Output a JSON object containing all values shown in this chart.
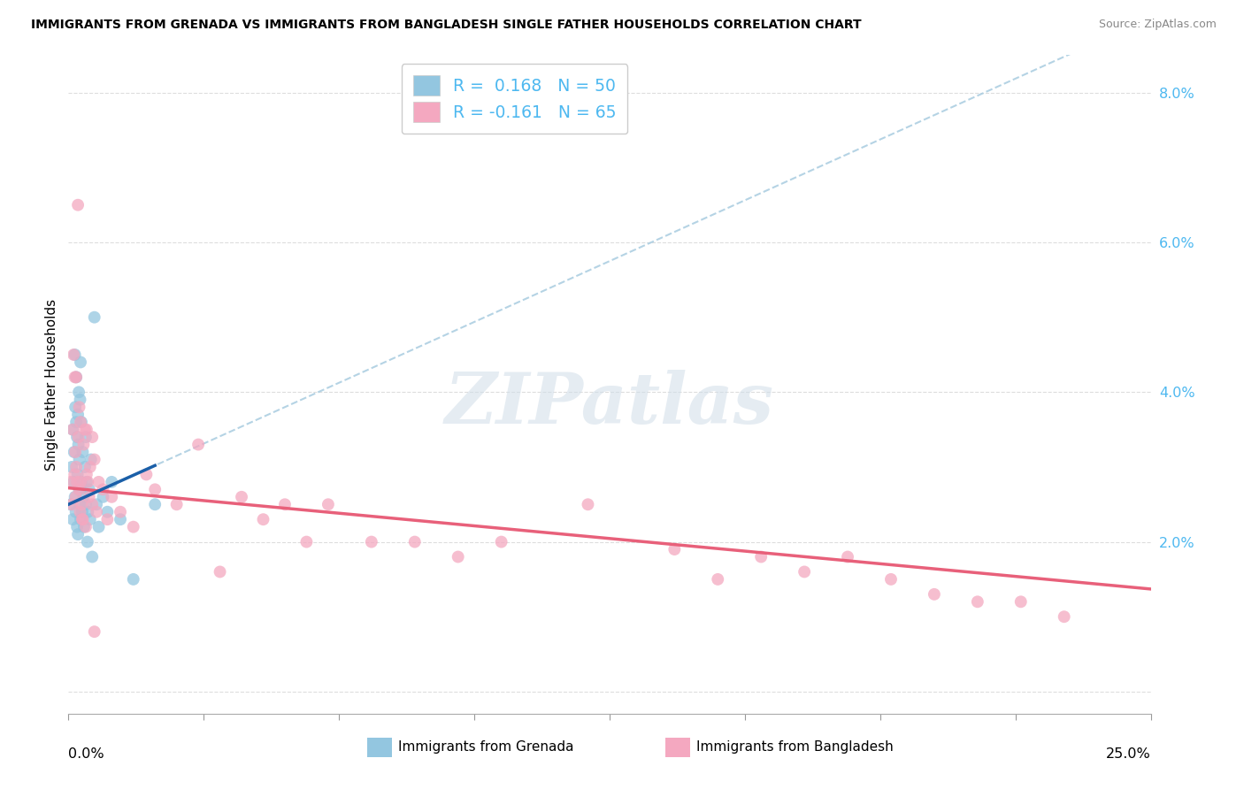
{
  "title": "IMMIGRANTS FROM GRENADA VS IMMIGRANTS FROM BANGLADESH SINGLE FATHER HOUSEHOLDS CORRELATION CHART",
  "source": "Source: ZipAtlas.com",
  "ylabel": "Single Father Households",
  "xlim": [
    0.0,
    25.0
  ],
  "ylim": [
    -0.3,
    8.5
  ],
  "ytick_vals": [
    0.0,
    2.0,
    4.0,
    6.0,
    8.0
  ],
  "ytick_labels": [
    "",
    "2.0%",
    "4.0%",
    "6.0%",
    "8.0%"
  ],
  "xtick_vals": [
    0,
    3.125,
    6.25,
    9.375,
    12.5,
    15.625,
    18.75,
    21.875,
    25.0
  ],
  "color_blue": "#93c6e0",
  "color_pink": "#f4a8c0",
  "color_blue_line": "#1a5fa8",
  "color_pink_line": "#e8607a",
  "color_dashed": "#a8cce0",
  "legend1_text": "R =  0.168   N = 50",
  "legend2_text": "R = -0.161   N = 65",
  "legend_label1": "Immigrants from Grenada",
  "legend_label2": "Immigrants from Bangladesh",
  "watermark": "ZIPatlas",
  "grenada_x": [
    0.05,
    0.08,
    0.1,
    0.1,
    0.12,
    0.13,
    0.15,
    0.15,
    0.16,
    0.17,
    0.18,
    0.18,
    0.2,
    0.2,
    0.21,
    0.22,
    0.22,
    0.23,
    0.24,
    0.25,
    0.25,
    0.26,
    0.27,
    0.28,
    0.28,
    0.3,
    0.3,
    0.32,
    0.33,
    0.35,
    0.36,
    0.38,
    0.4,
    0.4,
    0.42,
    0.44,
    0.45,
    0.48,
    0.5,
    0.52,
    0.55,
    0.6,
    0.65,
    0.7,
    0.8,
    0.9,
    1.0,
    1.2,
    1.5,
    2.0
  ],
  "grenada_y": [
    2.5,
    3.0,
    2.3,
    3.5,
    2.8,
    3.2,
    2.6,
    4.5,
    3.8,
    2.4,
    3.6,
    4.2,
    2.2,
    3.4,
    2.9,
    3.7,
    2.1,
    3.3,
    4.0,
    2.7,
    3.1,
    2.5,
    3.9,
    2.3,
    4.4,
    2.8,
    3.6,
    2.4,
    3.2,
    2.6,
    2.2,
    3.0,
    2.5,
    3.4,
    2.8,
    2.0,
    2.4,
    2.7,
    2.3,
    3.1,
    1.8,
    5.0,
    2.5,
    2.2,
    2.6,
    2.4,
    2.8,
    2.3,
    1.5,
    2.5
  ],
  "bangladesh_x": [
    0.05,
    0.08,
    0.1,
    0.12,
    0.14,
    0.15,
    0.16,
    0.17,
    0.18,
    0.2,
    0.22,
    0.23,
    0.25,
    0.25,
    0.27,
    0.28,
    0.3,
    0.32,
    0.35,
    0.38,
    0.4,
    0.42,
    0.45,
    0.48,
    0.5,
    0.55,
    0.6,
    0.65,
    0.7,
    0.8,
    0.9,
    1.0,
    1.2,
    1.5,
    1.8,
    2.0,
    2.5,
    3.0,
    3.5,
    4.0,
    4.5,
    5.0,
    5.5,
    6.0,
    7.0,
    8.0,
    9.0,
    10.0,
    12.0,
    14.0,
    15.0,
    16.0,
    17.0,
    18.0,
    19.0,
    20.0,
    21.0,
    22.0,
    23.0,
    0.33,
    0.28,
    0.42,
    0.55,
    0.18,
    0.6
  ],
  "bangladesh_y": [
    2.8,
    2.5,
    3.5,
    4.5,
    2.9,
    4.2,
    3.2,
    2.6,
    3.0,
    2.8,
    6.5,
    3.4,
    2.7,
    3.8,
    2.4,
    3.6,
    2.5,
    2.3,
    3.3,
    3.5,
    2.2,
    2.9,
    2.8,
    2.6,
    3.0,
    2.5,
    3.1,
    2.4,
    2.8,
    2.7,
    2.3,
    2.6,
    2.4,
    2.2,
    2.9,
    2.7,
    2.5,
    3.3,
    1.6,
    2.6,
    2.3,
    2.5,
    2.0,
    2.5,
    2.0,
    2.0,
    1.8,
    2.0,
    2.5,
    1.9,
    1.5,
    1.8,
    1.6,
    1.8,
    1.5,
    1.3,
    1.2,
    1.2,
    1.0,
    2.3,
    2.8,
    3.5,
    3.4,
    4.2,
    0.8
  ]
}
